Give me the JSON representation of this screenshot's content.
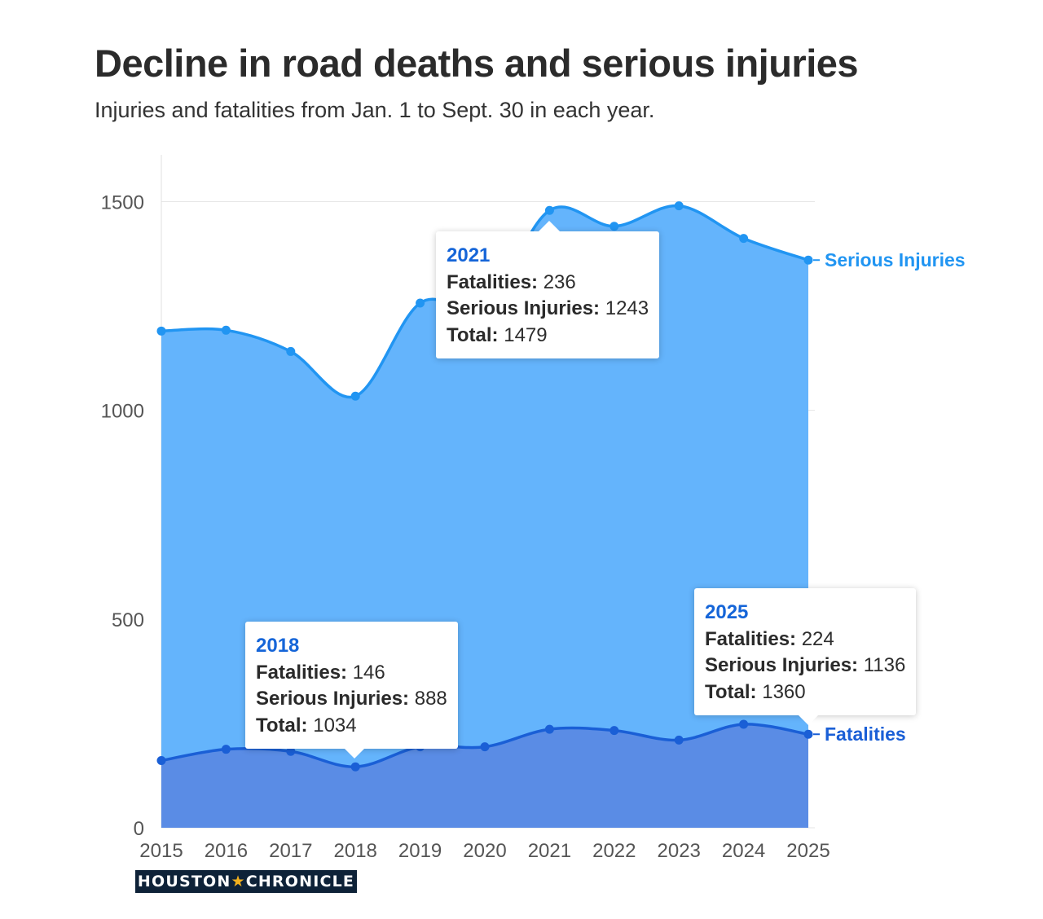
{
  "title": "Decline in road deaths and serious injuries",
  "subtitle": "Injuries and fatalities from Jan. 1 to Sept. 30 in each year.",
  "chart_data": {
    "type": "area",
    "x": [
      "2015",
      "2016",
      "2017",
      "2018",
      "2019",
      "2020",
      "2021",
      "2022",
      "2023",
      "2024",
      "2025"
    ],
    "series": [
      {
        "name": "Fatalities",
        "values": [
          161,
          188,
          183,
          146,
          194,
          194,
          236,
          233,
          210,
          248,
          224
        ],
        "color": "#1a5fd6",
        "fill": "#5a8ce5"
      },
      {
        "name": "Serious Injuries",
        "values": [
          1029,
          1004,
          958,
          888,
          1063,
          1054,
          1243,
          1208,
          1280,
          1164,
          1136
        ],
        "color": "#2195f2",
        "fill": "#64b4fc"
      }
    ],
    "stacked": true,
    "totals": [
      1190,
      1192,
      1141,
      1034,
      1257,
      1248,
      1479,
      1441,
      1490,
      1412,
      1360
    ],
    "ylim": [
      0,
      1600
    ],
    "yticks": [
      "0",
      "500",
      "1000",
      "1500"
    ],
    "grid": "horizontal",
    "xlabel": "",
    "ylabel": "",
    "legend": "end-of-line labels"
  },
  "tooltips": [
    {
      "year": "2021",
      "fatalities_label": "Fatalities:",
      "fatalities": "236",
      "injuries_label": "Serious Injuries:",
      "injuries": "1243",
      "total_label": "Total:",
      "total": "1479"
    },
    {
      "year": "2018",
      "fatalities_label": "Fatalities:",
      "fatalities": "146",
      "injuries_label": "Serious Injuries:",
      "injuries": "888",
      "total_label": "Total:",
      "total": "1034"
    },
    {
      "year": "2025",
      "fatalities_label": "Fatalities:",
      "fatalities": "224",
      "injuries_label": "Serious Injuries:",
      "injuries": "1136",
      "total_label": "Total:",
      "total": "1360"
    }
  ],
  "logo": {
    "left": "HOUSTON",
    "star": "★",
    "right": "CHRONICLE"
  }
}
